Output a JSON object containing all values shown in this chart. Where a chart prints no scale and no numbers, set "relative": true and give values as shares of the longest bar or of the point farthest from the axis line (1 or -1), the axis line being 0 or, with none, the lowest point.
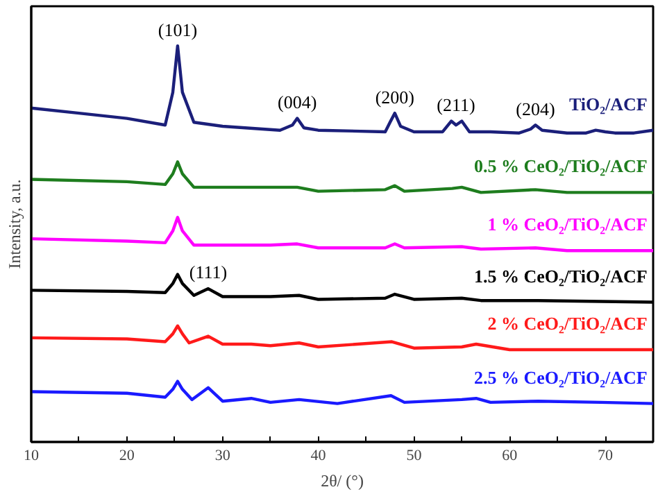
{
  "chart_data": {
    "type": "line",
    "relative": true,
    "xlabel": "2θ/ (°)",
    "ylabel": "Intensity, a.u.",
    "xlim": [
      10,
      75
    ],
    "xticks": [
      10,
      {
        "value": 15,
        "label": null
      },
      20,
      {
        "value": 25,
        "label": null
      },
      30,
      {
        "value": 35,
        "label": null
      },
      40,
      {
        "value": 45,
        "label": null
      },
      50,
      {
        "value": 55,
        "label": null
      },
      60,
      {
        "value": 65,
        "label": null
      },
      70,
      {
        "value": 75,
        "label": null
      }
    ],
    "tick_labels": "x",
    "grid": false,
    "marker": "none",
    "line_style": "solid",
    "series": [
      {
        "name": "TiO₂/ACF",
        "color": "#1b1f7a",
        "x": [
          10,
          15,
          20,
          24,
          24.8,
          25.3,
          25.8,
          27,
          30,
          36,
          37.3,
          37.8,
          38.5,
          40,
          47,
          47.5,
          48,
          48.6,
          50,
          53,
          53.9,
          54.4,
          55.0,
          55.8,
          58,
          61,
          62.2,
          62.7,
          63.4,
          66,
          68,
          69,
          70,
          71,
          73,
          75
        ],
        "values": [
          0.843,
          0.83,
          0.817,
          0.8,
          0.883,
          1.0,
          0.883,
          0.807,
          0.797,
          0.787,
          0.8,
          0.817,
          0.793,
          0.787,
          0.783,
          0.807,
          0.83,
          0.797,
          0.783,
          0.783,
          0.81,
          0.8,
          0.81,
          0.783,
          0.783,
          0.78,
          0.79,
          0.8,
          0.787,
          0.78,
          0.78,
          0.787,
          0.783,
          0.78,
          0.78,
          0.787
        ]
      },
      {
        "name": "0.5 % CeO₂/TiO₂/ACF",
        "color": "#1e7d1e",
        "x": [
          10,
          20,
          24,
          24.8,
          25.3,
          25.8,
          27,
          35,
          37.8,
          40,
          47,
          48,
          49,
          54,
          55,
          57,
          62.7,
          66,
          75
        ],
        "values": [
          0.663,
          0.657,
          0.65,
          0.677,
          0.707,
          0.677,
          0.643,
          0.643,
          0.643,
          0.633,
          0.637,
          0.647,
          0.633,
          0.64,
          0.643,
          0.63,
          0.637,
          0.63,
          0.63
        ]
      },
      {
        "name": "1 % CeO₂/TiO₂/ACF",
        "color": "#ff00ff",
        "x": [
          10,
          20,
          24,
          24.8,
          25.3,
          25.8,
          27,
          35,
          37.8,
          40,
          47,
          48,
          49,
          55,
          57,
          62.7,
          66,
          75
        ],
        "values": [
          0.513,
          0.507,
          0.503,
          0.533,
          0.567,
          0.533,
          0.497,
          0.497,
          0.5,
          0.49,
          0.49,
          0.5,
          0.49,
          0.493,
          0.487,
          0.49,
          0.483,
          0.483
        ]
      },
      {
        "name": "1.5 % CeO₂/TiO₂/ACF",
        "color": "#000000",
        "x": [
          10,
          20,
          24,
          24.8,
          25.3,
          25.8,
          27,
          28.5,
          30,
          33,
          35,
          38,
          40,
          47,
          48,
          50,
          55,
          57,
          63,
          75
        ],
        "values": [
          0.383,
          0.38,
          0.377,
          0.4,
          0.423,
          0.4,
          0.37,
          0.387,
          0.367,
          0.367,
          0.367,
          0.37,
          0.36,
          0.363,
          0.373,
          0.36,
          0.363,
          0.357,
          0.357,
          0.353
        ]
      },
      {
        "name": "2 % CeO₂/TiO₂/ACF",
        "color": "#ff1a1a",
        "x": [
          10,
          20,
          24,
          24.8,
          25.3,
          25.8,
          26.5,
          28.5,
          30,
          33,
          35,
          38,
          40,
          47.7,
          50,
          55,
          56.5,
          60,
          75
        ],
        "values": [
          0.263,
          0.26,
          0.253,
          0.273,
          0.293,
          0.273,
          0.25,
          0.267,
          0.247,
          0.247,
          0.243,
          0.25,
          0.24,
          0.253,
          0.237,
          0.24,
          0.247,
          0.233,
          0.233
        ]
      },
      {
        "name": "2.5 % CeO₂/TiO₂/ACF",
        "color": "#1a1aff",
        "x": [
          10,
          20,
          24,
          24.8,
          25.3,
          25.8,
          26.8,
          28.5,
          30,
          33,
          35,
          38,
          42,
          47.6,
          49,
          55,
          56.5,
          58,
          63,
          69.5,
          75
        ],
        "values": [
          0.127,
          0.123,
          0.113,
          0.133,
          0.153,
          0.133,
          0.107,
          0.137,
          0.103,
          0.11,
          0.1,
          0.107,
          0.097,
          0.117,
          0.1,
          0.107,
          0.11,
          0.1,
          0.103,
          0.1,
          0.097
        ]
      }
    ],
    "annotations": [
      {
        "text": "(101)",
        "x": 25.3,
        "y": 1.0
      },
      {
        "text": "(004)",
        "x": 37.8,
        "y": 0.817
      },
      {
        "text": "(200)",
        "x": 48,
        "y": 0.83
      },
      {
        "text": "(211)",
        "x": 54.4,
        "y": 0.81
      },
      {
        "text": "(204)",
        "x": 62.7,
        "y": 0.8
      },
      {
        "text": "(111)",
        "x": 28.5,
        "y": 0.387
      }
    ]
  }
}
